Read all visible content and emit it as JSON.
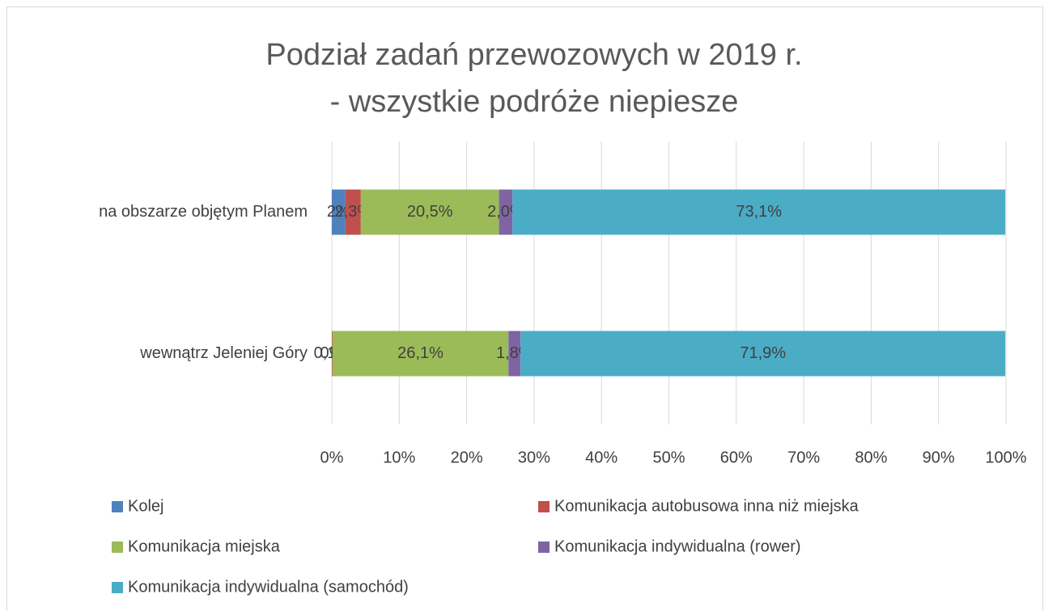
{
  "chart_data": {
    "type": "stacked_bar_horizontal",
    "title": [
      "Podział zadań przewozowych w 2019 r.",
      "- wszystkie podróże niepiesze"
    ],
    "categories": [
      "na obszarze objętym Planem",
      "wewnątrz Jeleniej Góry"
    ],
    "series": [
      {
        "name": "Kolej",
        "color": "#4f81bd",
        "values": [
          2,
          0
        ],
        "value_labels": [
          "2%",
          "0%"
        ]
      },
      {
        "name": "Komunikacja autobusowa inna niż miejska",
        "color": "#c0504d",
        "values": [
          2.3,
          0.1
        ],
        "value_labels": [
          "2,3%",
          "0,1%"
        ]
      },
      {
        "name": "Komunikacja miejska",
        "color": "#9bbb59",
        "values": [
          20.5,
          26.1
        ],
        "value_labels": [
          "20,5%",
          "26,1%"
        ]
      },
      {
        "name": "Komunikacja indywidualna (rower)",
        "color": "#8064a2",
        "values": [
          2.0,
          1.8
        ],
        "value_labels": [
          "2,0%",
          "1,8%"
        ]
      },
      {
        "name": "Komunikacja indywidualna (samochód)",
        "color": "#4bacc6",
        "values": [
          73.1,
          71.9
        ],
        "value_labels": [
          "73,1%",
          "71,9%"
        ]
      }
    ],
    "xlim": [
      0,
      100
    ],
    "xticks": [
      {
        "value": 0,
        "label": "0%"
      },
      {
        "value": 10,
        "label": "10%"
      },
      {
        "value": 20,
        "label": "20%"
      },
      {
        "value": 30,
        "label": "30%"
      },
      {
        "value": 40,
        "label": "40%"
      },
      {
        "value": 50,
        "label": "50%"
      },
      {
        "value": 60,
        "label": "60%"
      },
      {
        "value": 70,
        "label": "70%"
      },
      {
        "value": 80,
        "label": "80%"
      },
      {
        "value": 90,
        "label": "90%"
      },
      {
        "value": 100,
        "label": "100%"
      }
    ],
    "grid": true,
    "legend": "bottom"
  }
}
